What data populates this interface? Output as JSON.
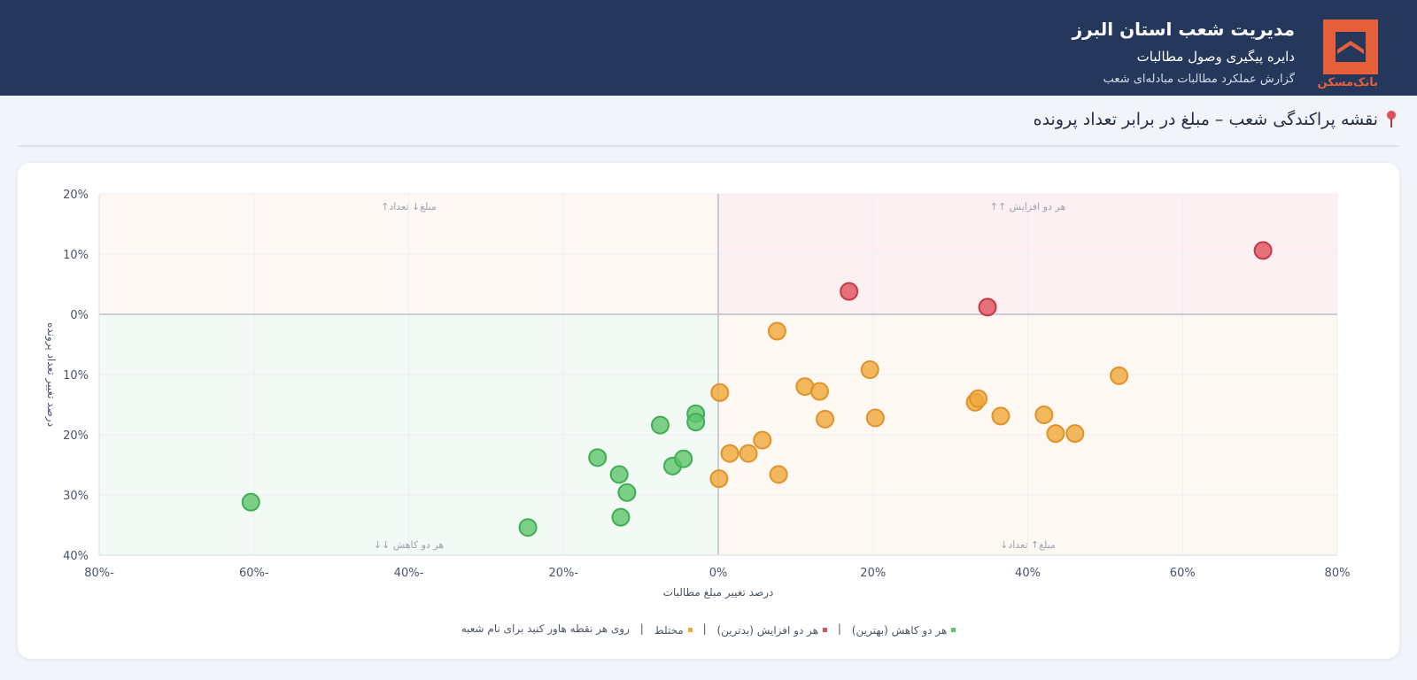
{
  "header": {
    "title": "مدیریت شعب استان البرز",
    "subtitle": "دایره پیگیری وصول مطالبات",
    "report": "گزارش عملکرد مطالبات مبادله‌ای شعب",
    "logo_text": "بانک‌مسکن"
  },
  "section": {
    "title": "نقشه پراکندگی شعب – مبلغ در برابر تعداد پرونده",
    "icon": "map-pin-icon"
  },
  "colors": {
    "header_bg": "#25385c",
    "brand": "#e5603a",
    "green": "#5cc46a",
    "red": "#e0505a",
    "orange": "#f0a83a"
  },
  "legend": {
    "green_label": "هر دو کاهش (بهترین)",
    "red_label": "هر دو افزایش (بدترین)",
    "orange_label": "مختلط",
    "hint": "روی هر نقطه هاور کنید برای نام شعبه",
    "sep": "|"
  },
  "chart_data": {
    "type": "scatter",
    "xlabel": "درصد تغییر مبلغ مطالبات",
    "ylabel": "درصد تغییر تعداد پرونده",
    "xlim": [
      -80,
      80
    ],
    "ylim": [
      -40,
      20
    ],
    "x_ticks": [
      {
        "v": -80,
        "label": "80%-"
      },
      {
        "v": -60,
        "label": "60%-"
      },
      {
        "v": -40,
        "label": "40%-"
      },
      {
        "v": -20,
        "label": "20%-"
      },
      {
        "v": 0,
        "label": "0%"
      },
      {
        "v": 20,
        "label": "20%"
      },
      {
        "v": 40,
        "label": "40%"
      },
      {
        "v": 60,
        "label": "60%"
      },
      {
        "v": 80,
        "label": "80%"
      }
    ],
    "y_ticks": [
      {
        "v": 20,
        "label": "20%"
      },
      {
        "v": 10,
        "label": "10%"
      },
      {
        "v": 0,
        "label": "0%"
      },
      {
        "v": -10,
        "label": "10%"
      },
      {
        "v": -20,
        "label": "20%"
      },
      {
        "v": -30,
        "label": "30%"
      },
      {
        "v": -40,
        "label": "40%"
      }
    ],
    "quadrant_labels": {
      "top_left": "مبلغ↓ تعداد↑",
      "top_right": "هر دو افزایش ↑↑",
      "bottom_left": "هر دو کاهش ↓↓",
      "bottom_right": "مبلغ↑ تعداد↓"
    },
    "grid": true,
    "series": [
      {
        "name": "هر دو کاهش (بهترین)",
        "color": "#5cc46a",
        "points": [
          {
            "x": -60.4,
            "y": -31.2
          },
          {
            "x": -24.6,
            "y": -35.4
          },
          {
            "x": -15.6,
            "y": -23.8
          },
          {
            "x": -12.8,
            "y": -26.6
          },
          {
            "x": -11.8,
            "y": -29.6
          },
          {
            "x": -12.6,
            "y": -33.7
          },
          {
            "x": -7.5,
            "y": -18.4
          },
          {
            "x": -5.9,
            "y": -25.2
          },
          {
            "x": -4.5,
            "y": -24.0
          },
          {
            "x": -2.9,
            "y": -16.5
          },
          {
            "x": -2.9,
            "y": -17.9
          }
        ]
      },
      {
        "name": "هر دو افزایش (بدترین)",
        "color": "#e0505a",
        "points": [
          {
            "x": 16.9,
            "y": 3.8
          },
          {
            "x": 34.8,
            "y": 1.2
          },
          {
            "x": 70.4,
            "y": 10.6
          }
        ]
      },
      {
        "name": "مختلط",
        "color": "#f0a83a",
        "points": [
          {
            "x": 7.6,
            "y": -2.8
          },
          {
            "x": 19.6,
            "y": -9.2
          },
          {
            "x": 0.2,
            "y": -13.0
          },
          {
            "x": 11.2,
            "y": -12.0
          },
          {
            "x": 13.1,
            "y": -12.8
          },
          {
            "x": 13.8,
            "y": -17.4
          },
          {
            "x": 20.3,
            "y": -17.2
          },
          {
            "x": 5.7,
            "y": -20.9
          },
          {
            "x": 1.5,
            "y": -23.1
          },
          {
            "x": 3.9,
            "y": -23.1
          },
          {
            "x": 7.8,
            "y": -26.6
          },
          {
            "x": 0.1,
            "y": -27.3
          },
          {
            "x": 33.2,
            "y": -14.6
          },
          {
            "x": 33.6,
            "y": -14.0
          },
          {
            "x": 36.5,
            "y": -16.9
          },
          {
            "x": 42.1,
            "y": -16.7
          },
          {
            "x": 43.6,
            "y": -19.8
          },
          {
            "x": 46.1,
            "y": -19.8
          },
          {
            "x": 51.8,
            "y": -10.2
          }
        ]
      }
    ]
  }
}
